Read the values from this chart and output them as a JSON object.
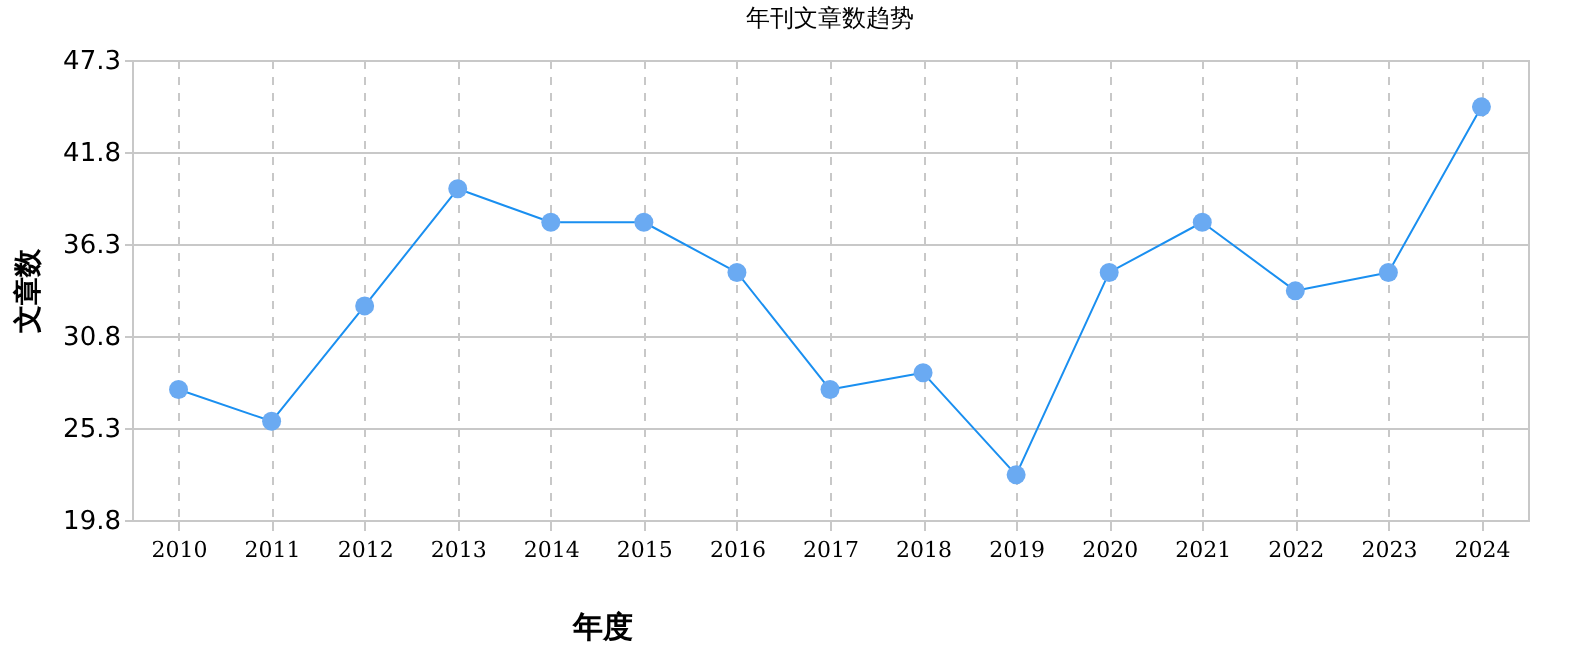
{
  "chart_data": {
    "type": "line",
    "title": "年刊文章数趋势",
    "xlabel": "年度",
    "ylabel": "文章数",
    "categories": [
      "2010",
      "2011",
      "2012",
      "2013",
      "2014",
      "2015",
      "2016",
      "2017",
      "2018",
      "2019",
      "2020",
      "2021",
      "2022",
      "2023",
      "2024"
    ],
    "series": [
      {
        "color": "#1a8ff0",
        "values": [
          27.6,
          25.7,
          32.6,
          39.6,
          37.6,
          37.6,
          34.6,
          27.6,
          28.6,
          22.5,
          34.6,
          37.6,
          33.5,
          34.6,
          44.5
        ]
      }
    ],
    "ylim": [
      19.8,
      47.3
    ],
    "yticks": [
      19.8,
      25.3,
      30.8,
      36.3,
      41.8,
      47.3
    ],
    "grid": true,
    "marker": "circle",
    "line_style": "solid",
    "legend": false
  }
}
